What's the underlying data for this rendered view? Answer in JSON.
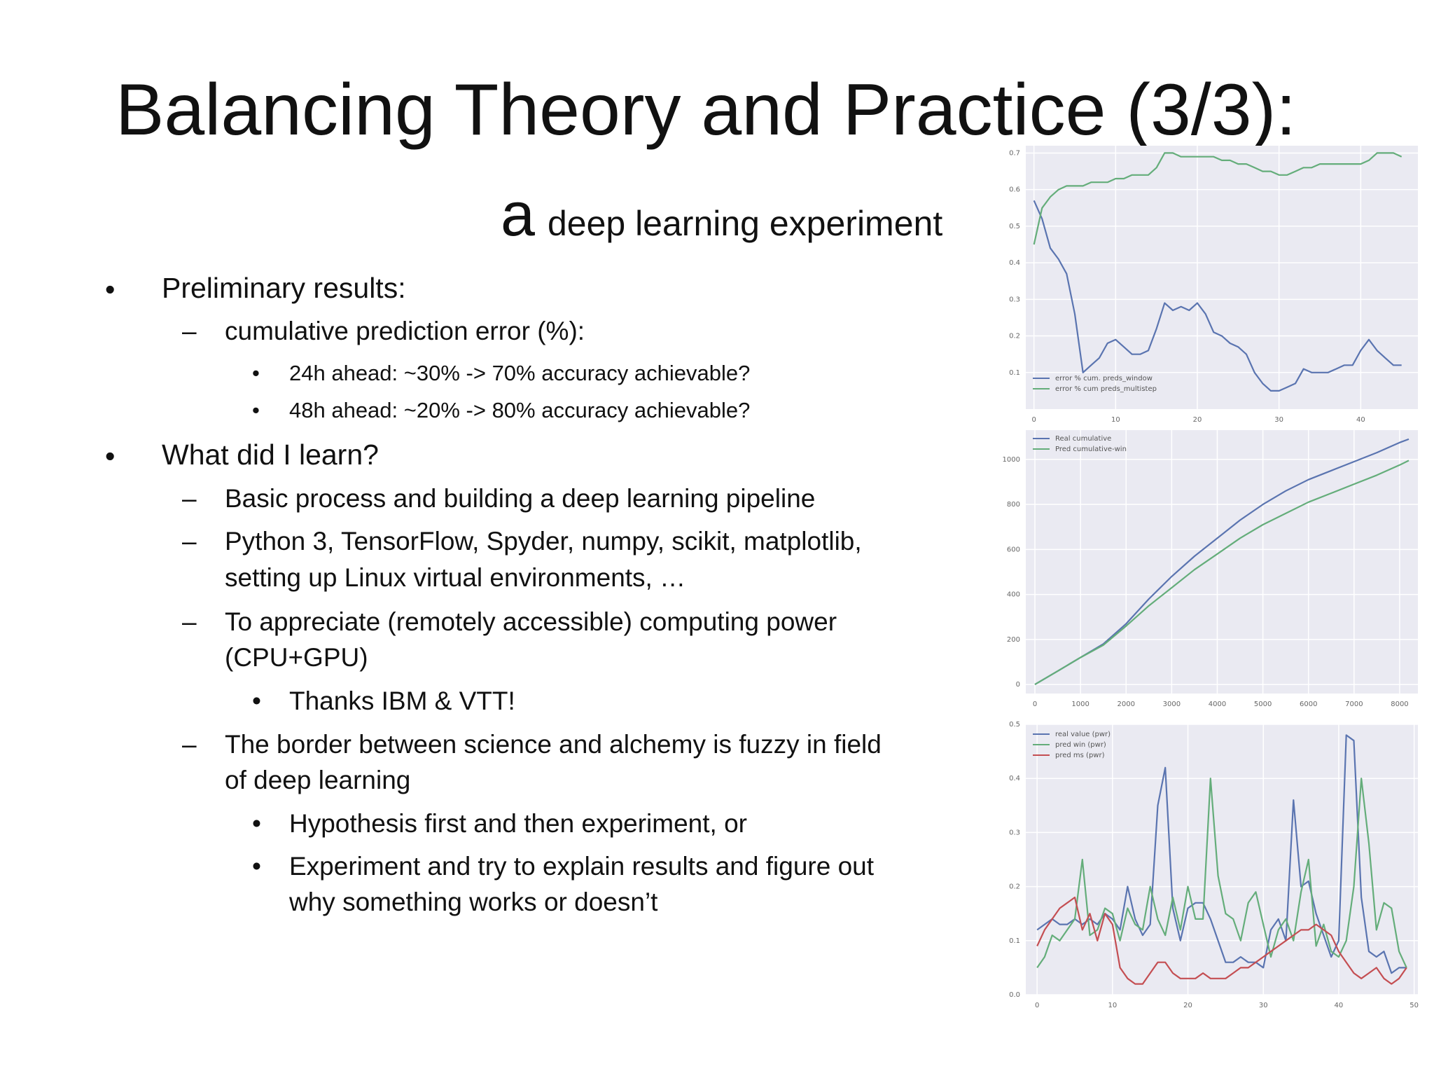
{
  "slide": {
    "title": "Balancing Theory and Practice (3/3):",
    "subtitle_big": "a",
    "subtitle_small": "deep learning experiment"
  },
  "bullets": {
    "b1": "Preliminary results:",
    "b1_1": "cumulative prediction error (%):",
    "b1_1_1": "24h ahead: ~30% -> 70% accuracy achievable?",
    "b1_1_2": "48h ahead: ~20% -> 80% accuracy achievable?",
    "b2": "What did I learn?",
    "b2_1": "Basic process and building a deep learning pipeline",
    "b2_2a": "Python 3, TensorFlow, Spyder, numpy, scikit, matplotlib,",
    "b2_2b": "setting up Linux virtual environments, …",
    "b2_3a": "To appreciate (remotely accessible) computing power",
    "b2_3b": "(CPU+GPU)",
    "b2_3_1": "Thanks IBM & VTT!",
    "b2_4a": "The border between science and alchemy is fuzzy in field",
    "b2_4b": "of deep learning",
    "b2_4_1": "Hypothesis first and then experiment, or",
    "b2_4_2a": "Experiment and try to explain results and figure out",
    "b2_4_2b": "why something works or doesn’t"
  },
  "markers": {
    "bullet": "•",
    "dash": "–"
  },
  "chart_data": [
    {
      "type": "line",
      "xlim": [
        -1,
        47
      ],
      "ylim": [
        0.0,
        0.72
      ],
      "xticks": [
        0,
        10,
        20,
        30,
        40
      ],
      "yticks": [
        0.1,
        0.2,
        0.3,
        0.4,
        0.5,
        0.6,
        0.7
      ],
      "yticklabels": [
        "0.1",
        "0.2",
        "0.3",
        "0.4",
        "0.5",
        "0.6",
        "0.7"
      ],
      "grid": true,
      "legend_position": "lower-left",
      "series": [
        {
          "name": "error % cum. preds_window",
          "color": "#5a74b0",
          "x": [
            0,
            1,
            2,
            3,
            4,
            5,
            6,
            7,
            8,
            9,
            10,
            11,
            12,
            13,
            14,
            15,
            16,
            17,
            18,
            19,
            20,
            21,
            22,
            23,
            24,
            25,
            26,
            27,
            28,
            29,
            30,
            31,
            32,
            33,
            34,
            35,
            36,
            37,
            38,
            39,
            40,
            41,
            42,
            43,
            44,
            45
          ],
          "y": [
            0.57,
            0.52,
            0.44,
            0.41,
            0.37,
            0.26,
            0.1,
            0.12,
            0.14,
            0.18,
            0.19,
            0.17,
            0.15,
            0.15,
            0.16,
            0.22,
            0.29,
            0.27,
            0.28,
            0.27,
            0.29,
            0.26,
            0.21,
            0.2,
            0.18,
            0.17,
            0.15,
            0.1,
            0.07,
            0.05,
            0.05,
            0.06,
            0.07,
            0.11,
            0.1,
            0.1,
            0.1,
            0.11,
            0.12,
            0.12,
            0.16,
            0.19,
            0.16,
            0.14,
            0.12,
            0.12
          ]
        },
        {
          "name": "error % cum preds_multistep",
          "color": "#64ad7a",
          "x": [
            0,
            1,
            2,
            3,
            4,
            5,
            6,
            7,
            8,
            9,
            10,
            11,
            12,
            13,
            14,
            15,
            16,
            17,
            18,
            19,
            20,
            21,
            22,
            23,
            24,
            25,
            26,
            27,
            28,
            29,
            30,
            31,
            32,
            33,
            34,
            35,
            36,
            37,
            38,
            39,
            40,
            41,
            42,
            43,
            44,
            45
          ],
          "y": [
            0.45,
            0.55,
            0.58,
            0.6,
            0.61,
            0.61,
            0.61,
            0.62,
            0.62,
            0.62,
            0.63,
            0.63,
            0.64,
            0.64,
            0.64,
            0.66,
            0.7,
            0.7,
            0.69,
            0.69,
            0.69,
            0.69,
            0.69,
            0.68,
            0.68,
            0.67,
            0.67,
            0.66,
            0.65,
            0.65,
            0.64,
            0.64,
            0.65,
            0.66,
            0.66,
            0.67,
            0.67,
            0.67,
            0.67,
            0.67,
            0.67,
            0.68,
            0.7,
            0.7,
            0.7,
            0.69
          ]
        }
      ]
    },
    {
      "type": "line",
      "xlim": [
        -200,
        8400
      ],
      "ylim": [
        -40,
        1130
      ],
      "xticks": [
        0,
        1000,
        2000,
        3000,
        4000,
        5000,
        6000,
        7000,
        8000
      ],
      "yticks": [
        0,
        200,
        400,
        600,
        800,
        1000
      ],
      "yticklabels": [
        "0",
        "200",
        "400",
        "600",
        "800",
        "1000"
      ],
      "grid": true,
      "legend_position": "upper-left",
      "series": [
        {
          "name": "Real cumulative",
          "color": "#5a74b0",
          "x": [
            0,
            500,
            1000,
            1500,
            2000,
            2500,
            3000,
            3500,
            4000,
            4500,
            5000,
            5500,
            6000,
            6500,
            7000,
            7500,
            8000,
            8200
          ],
          "y": [
            0,
            60,
            120,
            180,
            270,
            380,
            480,
            570,
            650,
            730,
            800,
            860,
            910,
            950,
            990,
            1030,
            1075,
            1090
          ]
        },
        {
          "name": "Pred cumulative-win",
          "color": "#64ad7a",
          "x": [
            0,
            500,
            1000,
            1500,
            2000,
            2500,
            3000,
            3500,
            4000,
            4500,
            5000,
            5500,
            6000,
            6500,
            7000,
            7500,
            8000,
            8200
          ],
          "y": [
            0,
            60,
            120,
            175,
            260,
            350,
            430,
            510,
            580,
            650,
            710,
            760,
            810,
            850,
            890,
            930,
            975,
            995
          ]
        }
      ]
    },
    {
      "type": "line",
      "xlim": [
        -1.5,
        50.5
      ],
      "ylim": [
        0.0,
        0.5
      ],
      "xticks": [
        0,
        10,
        20,
        30,
        40,
        50
      ],
      "yticks": [
        0.0,
        0.1,
        0.2,
        0.3,
        0.4,
        0.5
      ],
      "yticklabels": [
        "0.0",
        "0.1",
        "0.2",
        "0.3",
        "0.4",
        "0.5"
      ],
      "grid": true,
      "legend_position": "upper-left",
      "series": [
        {
          "name": "real value (pwr)",
          "color": "#5a74b0",
          "x": [
            0,
            1,
            2,
            3,
            4,
            5,
            6,
            7,
            8,
            9,
            10,
            11,
            12,
            13,
            14,
            15,
            16,
            17,
            18,
            19,
            20,
            21,
            22,
            23,
            24,
            25,
            26,
            27,
            28,
            29,
            30,
            31,
            32,
            33,
            34,
            35,
            36,
            37,
            38,
            39,
            40,
            41,
            42,
            43,
            44,
            45,
            46,
            47,
            48,
            49
          ],
          "y": [
            0.12,
            0.13,
            0.14,
            0.13,
            0.13,
            0.14,
            0.13,
            0.14,
            0.13,
            0.15,
            0.14,
            0.12,
            0.2,
            0.14,
            0.11,
            0.13,
            0.35,
            0.42,
            0.16,
            0.1,
            0.16,
            0.17,
            0.17,
            0.14,
            0.1,
            0.06,
            0.06,
            0.07,
            0.06,
            0.06,
            0.05,
            0.12,
            0.14,
            0.1,
            0.36,
            0.2,
            0.21,
            0.15,
            0.11,
            0.07,
            0.1,
            0.48,
            0.47,
            0.18,
            0.08,
            0.07,
            0.08,
            0.04,
            0.05,
            0.05
          ]
        },
        {
          "name": "pred win (pwr)",
          "color": "#64ad7a",
          "x": [
            0,
            1,
            2,
            3,
            4,
            5,
            6,
            7,
            8,
            9,
            10,
            11,
            12,
            13,
            14,
            15,
            16,
            17,
            18,
            19,
            20,
            21,
            22,
            23,
            24,
            25,
            26,
            27,
            28,
            29,
            30,
            31,
            32,
            33,
            34,
            35,
            36,
            37,
            38,
            39,
            40,
            41,
            42,
            43,
            44,
            45,
            46,
            47,
            48,
            49
          ],
          "y": [
            0.05,
            0.07,
            0.11,
            0.1,
            0.12,
            0.14,
            0.25,
            0.11,
            0.12,
            0.16,
            0.15,
            0.1,
            0.16,
            0.13,
            0.12,
            0.2,
            0.14,
            0.11,
            0.18,
            0.12,
            0.2,
            0.14,
            0.14,
            0.4,
            0.22,
            0.15,
            0.14,
            0.1,
            0.17,
            0.19,
            0.13,
            0.07,
            0.12,
            0.14,
            0.1,
            0.19,
            0.25,
            0.09,
            0.13,
            0.08,
            0.07,
            0.1,
            0.2,
            0.4,
            0.28,
            0.12,
            0.17,
            0.16,
            0.08,
            0.05
          ]
        },
        {
          "name": "pred ms (pwr)",
          "color": "#c44e52",
          "x": [
            0,
            1,
            2,
            3,
            4,
            5,
            6,
            7,
            8,
            9,
            10,
            11,
            12,
            13,
            14,
            15,
            16,
            17,
            18,
            19,
            20,
            21,
            22,
            23,
            24,
            25,
            26,
            27,
            28,
            29,
            30,
            31,
            32,
            33,
            34,
            35,
            36,
            37,
            38,
            39,
            40,
            41,
            42,
            43,
            44,
            45,
            46,
            47,
            48,
            49
          ],
          "y": [
            0.09,
            0.12,
            0.14,
            0.16,
            0.17,
            0.18,
            0.12,
            0.15,
            0.1,
            0.15,
            0.13,
            0.05,
            0.03,
            0.02,
            0.02,
            0.04,
            0.06,
            0.06,
            0.04,
            0.03,
            0.03,
            0.03,
            0.04,
            0.03,
            0.03,
            0.03,
            0.04,
            0.05,
            0.05,
            0.06,
            0.07,
            0.08,
            0.09,
            0.1,
            0.11,
            0.12,
            0.12,
            0.13,
            0.12,
            0.11,
            0.08,
            0.06,
            0.04,
            0.03,
            0.04,
            0.05,
            0.03,
            0.02,
            0.03,
            0.05
          ]
        }
      ]
    }
  ]
}
